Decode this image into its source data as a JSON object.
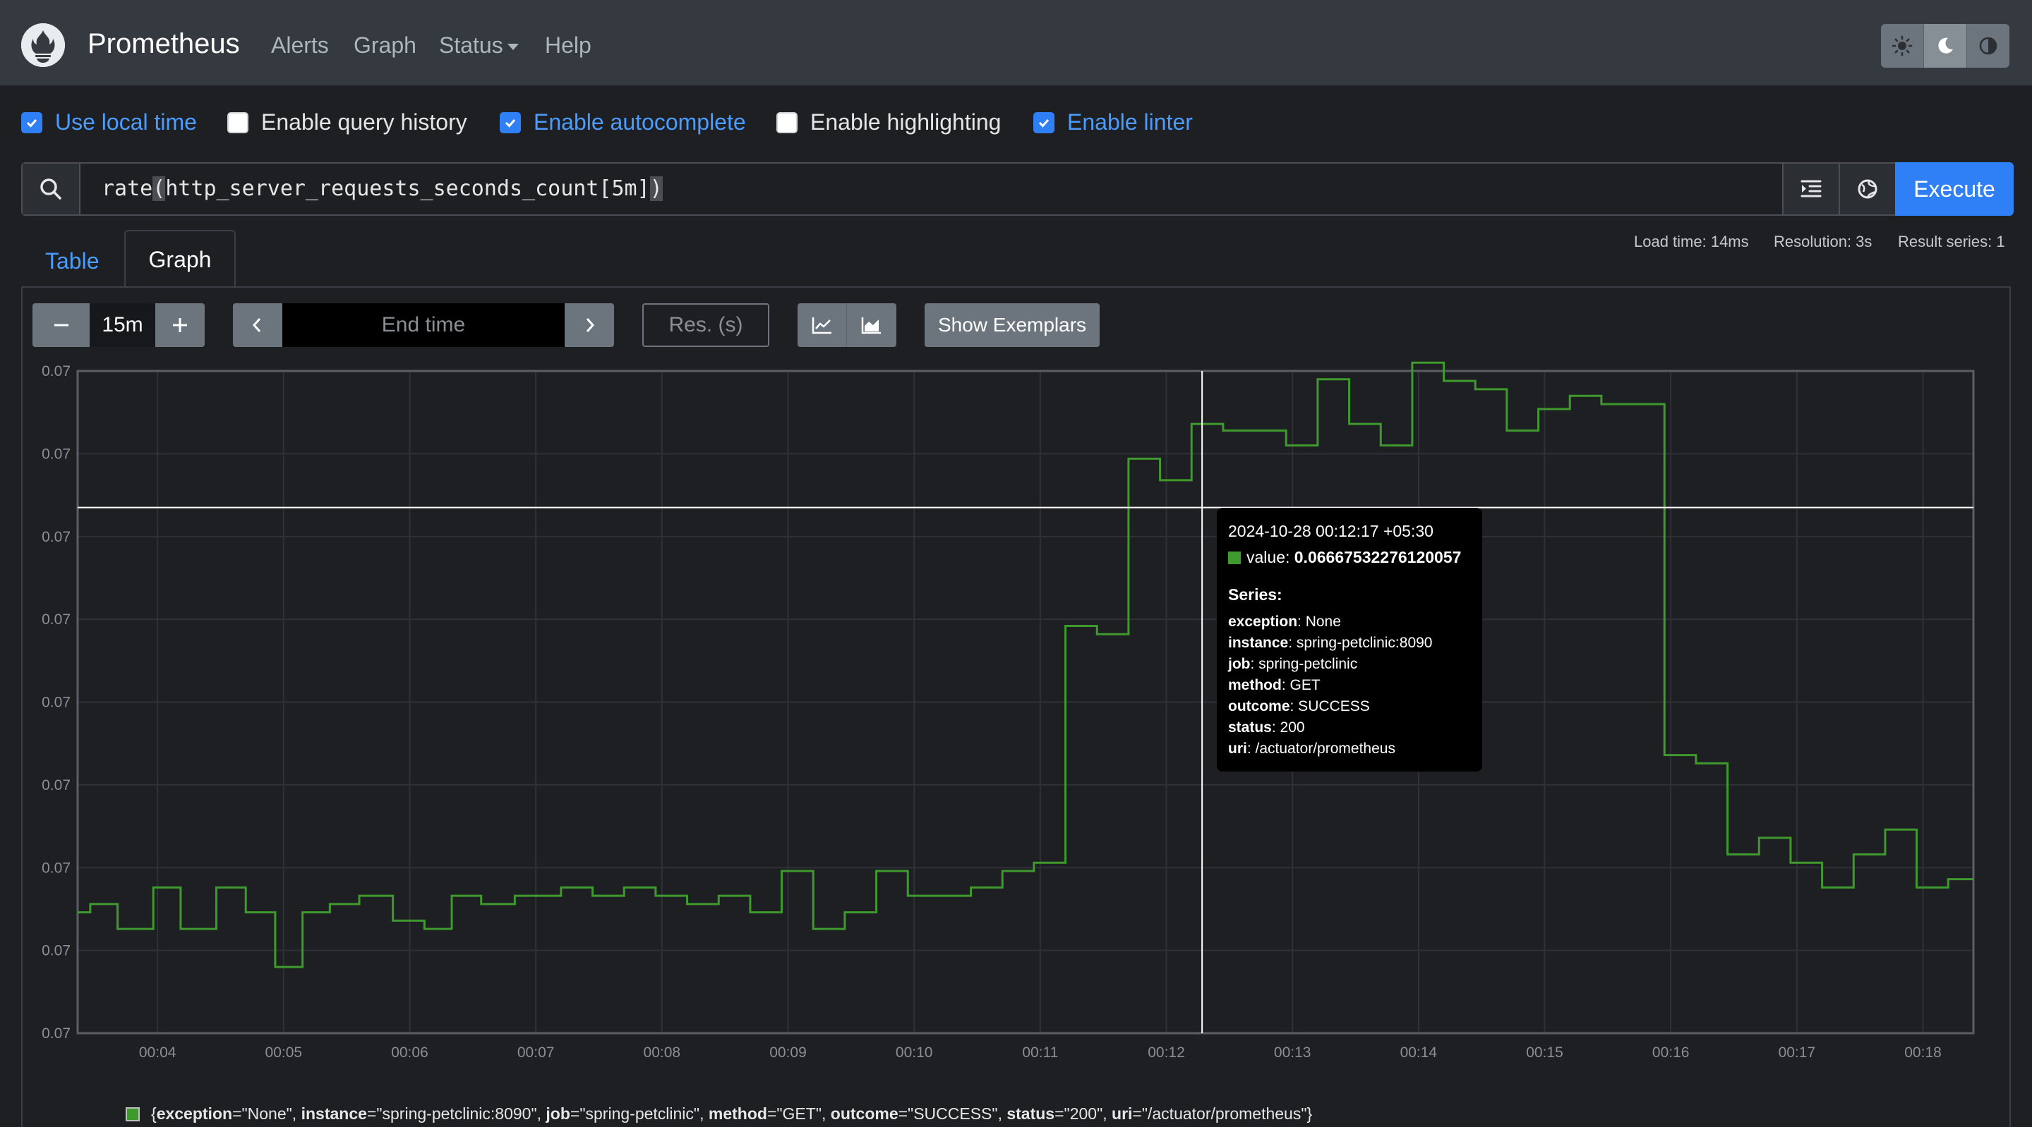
{
  "navbar": {
    "brand": "Prometheus",
    "links": [
      "Alerts",
      "Graph",
      "Status",
      "Help"
    ]
  },
  "options": [
    {
      "label": "Use local time",
      "checked": true
    },
    {
      "label": "Enable query history",
      "checked": false
    },
    {
      "label": "Enable autocomplete",
      "checked": true
    },
    {
      "label": "Enable highlighting",
      "checked": false
    },
    {
      "label": "Enable linter",
      "checked": true
    }
  ],
  "query": {
    "prefix": "rate",
    "open_paren": "(",
    "body": "http_server_requests_seconds_count[5m]",
    "close_paren": ")",
    "execute_label": "Execute"
  },
  "tabs": {
    "table": "Table",
    "graph": "Graph"
  },
  "stats": {
    "load_time": "Load time: 14ms",
    "resolution": "Resolution: 3s",
    "result_series": "Result series: 1"
  },
  "controls": {
    "range": "15m",
    "end_time_placeholder": "End time",
    "res_placeholder": "Res. (s)",
    "exemplars_label": "Show Exemplars"
  },
  "tooltip": {
    "date": "2024-10-28 00:12:17 +05:30",
    "value_label": "value:",
    "value": "0.06667532276120057",
    "series_label": "Series:",
    "labels": [
      {
        "key": "exception",
        "value": ": None"
      },
      {
        "key": "instance",
        "value": ": spring-petclinic:8090"
      },
      {
        "key": "job",
        "value": ": spring-petclinic"
      },
      {
        "key": "method",
        "value": ": GET"
      },
      {
        "key": "outcome",
        "value": ": SUCCESS"
      },
      {
        "key": "status",
        "value": ": 200"
      },
      {
        "key": "uri",
        "value": ": /actuator/prometheus"
      }
    ]
  },
  "legend": {
    "parts": [
      {
        "t": "{",
        "b": false
      },
      {
        "t": "exception",
        "b": true
      },
      {
        "t": "=\"None\", ",
        "b": false
      },
      {
        "t": "instance",
        "b": true
      },
      {
        "t": "=\"spring-petclinic:8090\", ",
        "b": false
      },
      {
        "t": "job",
        "b": true
      },
      {
        "t": "=\"spring-petclinic\", ",
        "b": false
      },
      {
        "t": "method",
        "b": true
      },
      {
        "t": "=\"GET\", ",
        "b": false
      },
      {
        "t": "outcome",
        "b": true
      },
      {
        "t": "=\"SUCCESS\", ",
        "b": false
      },
      {
        "t": "status",
        "b": true
      },
      {
        "t": "=\"200\", ",
        "b": false
      },
      {
        "t": "uri",
        "b": true
      },
      {
        "t": "=\"/actuator/prometheus\"}",
        "b": false
      }
    ]
  },
  "colors": {
    "series": "#3f9a2d",
    "accent": "#2f7ff7"
  },
  "chart_data": {
    "type": "line",
    "x_ticks": [
      "00:04",
      "00:05",
      "00:06",
      "00:07",
      "00:08",
      "00:09",
      "00:10",
      "00:11",
      "00:12",
      "00:13",
      "00:14",
      "00:15",
      "00:16",
      "00:17",
      "00:18"
    ],
    "y_ticks": [
      "0.07",
      "0.07",
      "0.07",
      "0.07",
      "0.07",
      "0.07",
      "0.07",
      "0.07",
      "0.07"
    ],
    "ylim": [
      0.0635,
      0.0675
    ],
    "xlim": [
      "00:03:22",
      "00:18:24"
    ],
    "cursor_time": "00:12:17",
    "cursor_value": 0.066675,
    "series": [
      {
        "step": true,
        "points": [
          [
            "00:03:22",
            0.06423
          ],
          [
            "00:03:28",
            0.06428
          ],
          [
            "00:03:41",
            0.06413
          ],
          [
            "00:03:58",
            0.06438
          ],
          [
            "00:04:11",
            0.06413
          ],
          [
            "00:04:28",
            0.06438
          ],
          [
            "00:04:42",
            0.06423
          ],
          [
            "00:04:56",
            0.0639
          ],
          [
            "00:05:09",
            0.06423
          ],
          [
            "00:05:22",
            0.06428
          ],
          [
            "00:05:36",
            0.06433
          ],
          [
            "00:05:52",
            0.06418
          ],
          [
            "00:06:07",
            0.06413
          ],
          [
            "00:06:20",
            0.06433
          ],
          [
            "00:06:34",
            0.06428
          ],
          [
            "00:06:50",
            0.06433
          ],
          [
            "00:07:12",
            0.06438
          ],
          [
            "00:07:27",
            0.06433
          ],
          [
            "00:07:42",
            0.06438
          ],
          [
            "00:07:57",
            0.06433
          ],
          [
            "00:08:12",
            0.06428
          ],
          [
            "00:08:27",
            0.06433
          ],
          [
            "00:08:42",
            0.06423
          ],
          [
            "00:08:57",
            0.06448
          ],
          [
            "00:09:12",
            0.06413
          ],
          [
            "00:09:27",
            0.06423
          ],
          [
            "00:09:42",
            0.06448
          ],
          [
            "00:09:57",
            0.06433
          ],
          [
            "00:10:27",
            0.06438
          ],
          [
            "00:10:42",
            0.06448
          ],
          [
            "00:10:57",
            0.06453
          ],
          [
            "00:11:12",
            0.06596
          ],
          [
            "00:11:27",
            0.06591
          ],
          [
            "00:11:42",
            0.06697
          ],
          [
            "00:11:57",
            0.06684
          ],
          [
            "00:12:12",
            0.06718
          ],
          [
            "00:12:27",
            0.06714
          ],
          [
            "00:12:57",
            0.06705
          ],
          [
            "00:13:12",
            0.06745
          ],
          [
            "00:13:27",
            0.06718
          ],
          [
            "00:13:42",
            0.06705
          ],
          [
            "00:13:57",
            0.06755
          ],
          [
            "00:14:12",
            0.06744
          ],
          [
            "00:14:27",
            0.06739
          ],
          [
            "00:14:42",
            0.06714
          ],
          [
            "00:14:57",
            0.06727
          ],
          [
            "00:15:12",
            0.06735
          ],
          [
            "00:15:27",
            0.0673
          ],
          [
            "00:15:57",
            0.06518
          ],
          [
            "00:16:12",
            0.06513
          ],
          [
            "00:16:27",
            0.06458
          ],
          [
            "00:16:42",
            0.06468
          ],
          [
            "00:16:57",
            0.06453
          ],
          [
            "00:17:12",
            0.06438
          ],
          [
            "00:17:27",
            0.06458
          ],
          [
            "00:17:42",
            0.06473
          ],
          [
            "00:17:57",
            0.06438
          ],
          [
            "00:18:12",
            0.06443
          ],
          [
            "00:18:24",
            0.06443
          ]
        ]
      }
    ]
  }
}
